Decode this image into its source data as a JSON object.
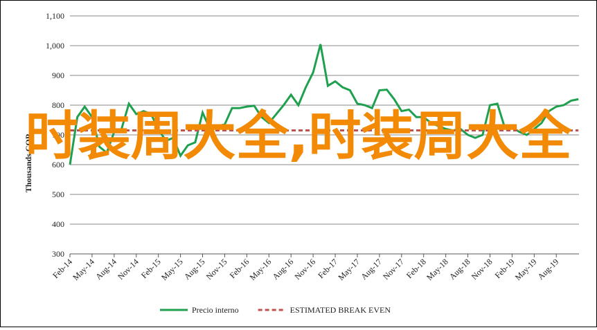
{
  "chart_data": {
    "type": "line",
    "ylabel": "Thousands COP",
    "categories": [
      "Feb-14",
      null,
      null,
      "May-14",
      null,
      null,
      "Aug-14",
      null,
      null,
      "Nov-14",
      null,
      null,
      "Feb-15",
      null,
      null,
      "May-15",
      null,
      null,
      "Aug-15",
      null,
      null,
      "Nov-15",
      null,
      null,
      "Feb-16",
      null,
      null,
      "May-16",
      null,
      null,
      "Aug-16",
      null,
      null,
      "Nov-16",
      null,
      null,
      "Feb-17",
      null,
      null,
      "May-17",
      null,
      null,
      "Aug-17",
      null,
      null,
      "Nov-17",
      null,
      null,
      "Feb-18",
      null,
      null,
      "May-18",
      null,
      null,
      "Aug-18",
      null,
      null,
      "Nov-18",
      null,
      null,
      "Feb-19",
      null,
      null,
      "May-19",
      null,
      null,
      "Aug-19",
      null,
      null,
      null
    ],
    "series": [
      {
        "name": "Precio interno",
        "color": "#1fa04f",
        "style": "solid",
        "values": [
          600,
          760,
          795,
          760,
          660,
          640,
          710,
          720,
          805,
          770,
          780,
          770,
          720,
          680,
          690,
          630,
          665,
          675,
          775,
          720,
          730,
          735,
          790,
          790,
          795,
          798,
          760,
          740,
          770,
          800,
          835,
          800,
          860,
          910,
          1005,
          865,
          880,
          860,
          850,
          805,
          800,
          790,
          850,
          852,
          820,
          780,
          785,
          760,
          760,
          740,
          730,
          720,
          715,
          720,
          700,
          690,
          700,
          800,
          805,
          725,
          725,
          710,
          700,
          720,
          740,
          780,
          795,
          800,
          815,
          820
        ]
      },
      {
        "name": "ESTIMATED BREAK EVEN",
        "color": "#c0504d",
        "style": "dashed",
        "values": [
          715,
          715,
          715,
          715,
          715,
          715,
          715,
          715,
          715,
          715,
          715,
          715,
          715,
          715,
          715,
          715,
          715,
          715,
          715,
          715,
          715,
          715,
          715,
          715,
          715,
          715,
          715,
          715,
          715,
          715,
          715,
          715,
          715,
          715,
          715,
          715,
          715,
          715,
          715,
          715,
          715,
          715,
          715,
          715,
          715,
          715,
          715,
          715,
          715,
          715,
          715,
          715,
          715,
          715,
          715,
          715,
          715,
          715,
          715,
          715,
          715,
          715,
          715,
          715,
          715,
          715,
          715,
          715,
          715,
          715
        ]
      }
    ],
    "ylim": [
      300,
      1100
    ],
    "yticks": [
      300,
      400,
      500,
      600,
      700,
      800,
      900,
      {
        "value": 1000,
        "label": "1,000"
      },
      {
        "value": 1100,
        "label": "1,100"
      }
    ],
    "grid": true,
    "legend": "bottom"
  },
  "overlay_text": "时装周大全,时装周大全"
}
